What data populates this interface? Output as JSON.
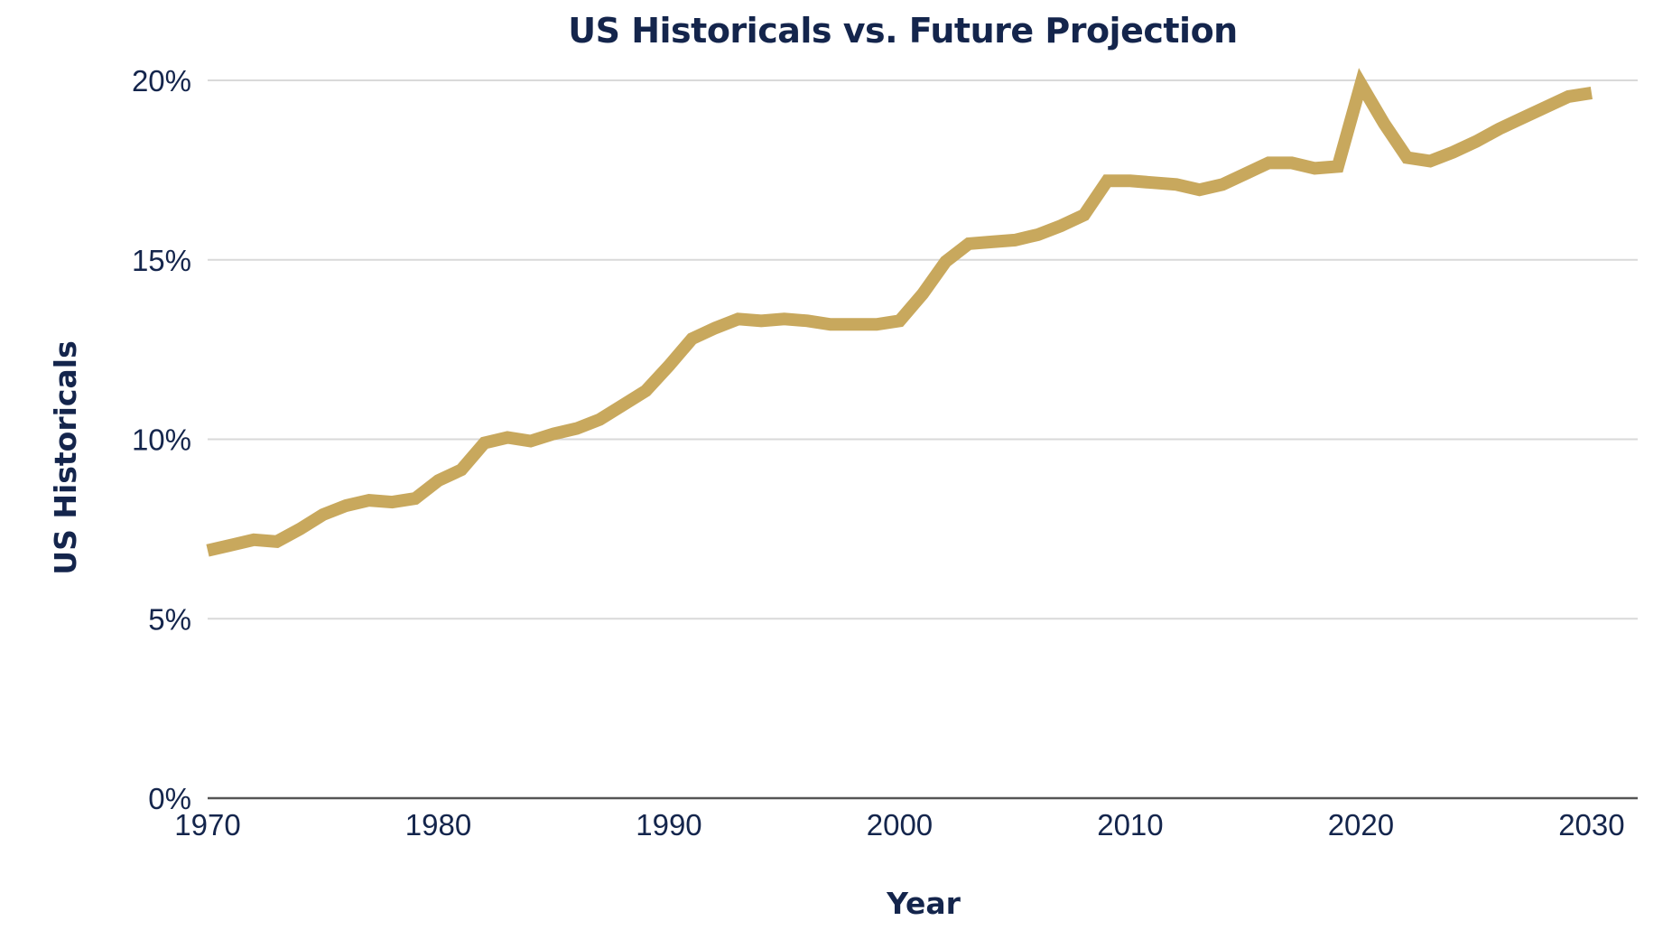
{
  "chart_data": {
    "type": "line",
    "title": "US Historicals vs. Future Projection",
    "xlabel": "Year",
    "ylabel": "US Historicals",
    "xlim": [
      1970,
      2032
    ],
    "ylim": [
      0,
      20
    ],
    "x_ticks": [
      1970,
      1980,
      1990,
      2000,
      2010,
      2020,
      2030
    ],
    "x_tick_labels": [
      "1970",
      "1980",
      "1990",
      "2000",
      "2010",
      "2020",
      "2030"
    ],
    "y_ticks": [
      0,
      5,
      10,
      15,
      20
    ],
    "y_tick_labels": [
      "0%",
      "5%",
      "10%",
      "15%",
      "20%"
    ],
    "grid": true,
    "grid_axis": "y",
    "legend": "none",
    "colors": {
      "line": "#C8A85D",
      "text": "#14254C",
      "grid": "#D9D9D9",
      "axis": "#555555"
    },
    "series": [
      {
        "x": [
          1970,
          1971,
          1972,
          1973,
          1974,
          1975,
          1976,
          1977,
          1978,
          1979,
          1980,
          1981,
          1982,
          1983,
          1984,
          1985,
          1986,
          1987,
          1988,
          1989,
          1990,
          1991,
          1992,
          1993,
          1994,
          1995,
          1996,
          1997,
          1998,
          1999,
          2000,
          2001,
          2002,
          2003,
          2004,
          2005,
          2006,
          2007,
          2008,
          2009,
          2010,
          2011,
          2012,
          2013,
          2014,
          2015,
          2016,
          2017,
          2018,
          2019,
          2020,
          2021,
          2022,
          2023,
          2024,
          2025,
          2026,
          2027,
          2028,
          2029,
          2030
        ],
        "values": [
          6.9,
          7.05,
          7.2,
          7.15,
          7.5,
          7.9,
          8.15,
          8.3,
          8.25,
          8.35,
          8.85,
          9.15,
          9.9,
          10.05,
          9.95,
          10.15,
          10.3,
          10.55,
          10.95,
          11.35,
          12.05,
          12.8,
          13.1,
          13.35,
          13.3,
          13.35,
          13.3,
          13.2,
          13.2,
          13.2,
          13.3,
          14.05,
          14.95,
          15.45,
          15.5,
          15.55,
          15.7,
          15.95,
          16.25,
          17.2,
          17.2,
          17.15,
          17.1,
          16.95,
          17.1,
          17.4,
          17.7,
          17.7,
          17.55,
          17.6,
          19.9,
          18.8,
          17.85,
          17.75,
          18.0,
          18.3,
          18.65,
          18.95,
          19.25,
          19.55,
          19.65
        ]
      }
    ]
  }
}
